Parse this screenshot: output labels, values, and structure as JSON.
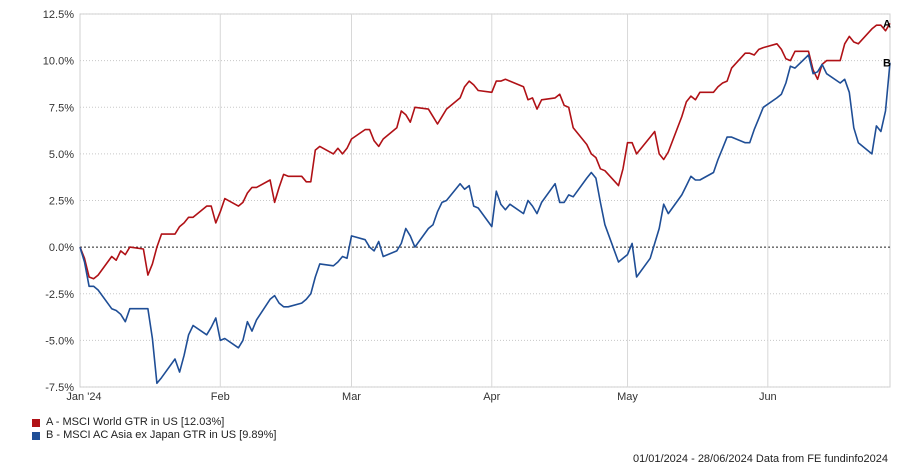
{
  "chart_data": {
    "type": "line",
    "x_ticks": [
      "Jan '24",
      "Feb",
      "Mar",
      "Apr",
      "May",
      "Jun"
    ],
    "y_ticks": [
      "12.5%",
      "10.0%",
      "7.5%",
      "5.0%",
      "2.5%",
      "0.0%",
      "-2.5%",
      "-5.0%",
      "-7.5%"
    ],
    "ylim": [
      -7.5,
      12.5
    ],
    "x_range": [
      "2024-01-01",
      "2024-06-28"
    ],
    "grid": true,
    "zero_line": "dotted",
    "series": [
      {
        "name": "A - MSCI World GTR in US [12.03%]",
        "end_label": "A",
        "color": "#b01116",
        "points": [
          [
            "2024-01-01",
            0.0
          ],
          [
            "2024-01-02",
            -0.6
          ],
          [
            "2024-01-03",
            -1.6
          ],
          [
            "2024-01-04",
            -1.7
          ],
          [
            "2024-01-05",
            -1.5
          ],
          [
            "2024-01-08",
            -0.5
          ],
          [
            "2024-01-09",
            -0.7
          ],
          [
            "2024-01-10",
            -0.2
          ],
          [
            "2024-01-11",
            -0.4
          ],
          [
            "2024-01-12",
            0.0
          ],
          [
            "2024-01-15",
            -0.1
          ],
          [
            "2024-01-16",
            -1.5
          ],
          [
            "2024-01-17",
            -0.9
          ],
          [
            "2024-01-18",
            0.0
          ],
          [
            "2024-01-19",
            0.7
          ],
          [
            "2024-01-22",
            0.7
          ],
          [
            "2024-01-23",
            1.1
          ],
          [
            "2024-01-24",
            1.3
          ],
          [
            "2024-01-25",
            1.6
          ],
          [
            "2024-01-26",
            1.6
          ],
          [
            "2024-01-29",
            2.2
          ],
          [
            "2024-01-30",
            2.2
          ],
          [
            "2024-01-31",
            1.3
          ],
          [
            "2024-02-01",
            1.9
          ],
          [
            "2024-02-02",
            2.6
          ],
          [
            "2024-02-05",
            2.2
          ],
          [
            "2024-02-06",
            2.4
          ],
          [
            "2024-02-07",
            2.9
          ],
          [
            "2024-02-08",
            3.2
          ],
          [
            "2024-02-09",
            3.2
          ],
          [
            "2024-02-12",
            3.6
          ],
          [
            "2024-02-13",
            2.4
          ],
          [
            "2024-02-14",
            3.2
          ],
          [
            "2024-02-15",
            3.9
          ],
          [
            "2024-02-16",
            3.8
          ],
          [
            "2024-02-19",
            3.8
          ],
          [
            "2024-02-20",
            3.5
          ],
          [
            "2024-02-21",
            3.5
          ],
          [
            "2024-02-22",
            5.2
          ],
          [
            "2024-02-23",
            5.4
          ],
          [
            "2024-02-26",
            5.0
          ],
          [
            "2024-02-27",
            5.3
          ],
          [
            "2024-02-28",
            5.0
          ],
          [
            "2024-02-29",
            5.3
          ],
          [
            "2024-03-01",
            5.8
          ],
          [
            "2024-03-04",
            6.3
          ],
          [
            "2024-03-05",
            6.3
          ],
          [
            "2024-03-06",
            5.7
          ],
          [
            "2024-03-07",
            5.4
          ],
          [
            "2024-03-08",
            5.8
          ],
          [
            "2024-03-11",
            6.4
          ],
          [
            "2024-03-12",
            7.3
          ],
          [
            "2024-03-13",
            7.1
          ],
          [
            "2024-03-14",
            6.7
          ],
          [
            "2024-03-15",
            7.5
          ],
          [
            "2024-03-18",
            7.4
          ],
          [
            "2024-03-19",
            7.0
          ],
          [
            "2024-03-20",
            6.6
          ],
          [
            "2024-03-21",
            7.0
          ],
          [
            "2024-03-22",
            7.4
          ],
          [
            "2024-03-25",
            8.0
          ],
          [
            "2024-03-26",
            8.6
          ],
          [
            "2024-03-27",
            8.9
          ],
          [
            "2024-03-28",
            8.7
          ],
          [
            "2024-03-29",
            8.4
          ],
          [
            "2024-04-01",
            8.3
          ],
          [
            "2024-04-02",
            8.9
          ],
          [
            "2024-04-03",
            8.9
          ],
          [
            "2024-04-04",
            9.0
          ],
          [
            "2024-04-05",
            8.9
          ],
          [
            "2024-04-08",
            8.6
          ],
          [
            "2024-04-09",
            7.9
          ],
          [
            "2024-04-10",
            8.0
          ],
          [
            "2024-04-11",
            7.4
          ],
          [
            "2024-04-12",
            7.9
          ],
          [
            "2024-04-15",
            8.0
          ],
          [
            "2024-04-16",
            8.2
          ],
          [
            "2024-04-17",
            7.6
          ],
          [
            "2024-04-18",
            7.5
          ],
          [
            "2024-04-19",
            6.4
          ],
          [
            "2024-04-22",
            5.5
          ],
          [
            "2024-04-23",
            5.0
          ],
          [
            "2024-04-24",
            4.8
          ],
          [
            "2024-04-25",
            4.2
          ],
          [
            "2024-04-26",
            4.1
          ],
          [
            "2024-04-29",
            3.3
          ],
          [
            "2024-04-30",
            4.2
          ],
          [
            "2024-05-01",
            5.6
          ],
          [
            "2024-05-02",
            5.6
          ],
          [
            "2024-05-03",
            5.0
          ],
          [
            "2024-05-06",
            5.9
          ],
          [
            "2024-05-07",
            6.2
          ],
          [
            "2024-05-08",
            5.0
          ],
          [
            "2024-05-09",
            4.7
          ],
          [
            "2024-05-10",
            5.1
          ],
          [
            "2024-05-13",
            7.0
          ],
          [
            "2024-05-14",
            7.8
          ],
          [
            "2024-05-15",
            8.1
          ],
          [
            "2024-05-16",
            7.9
          ],
          [
            "2024-05-17",
            8.3
          ],
          [
            "2024-05-20",
            8.3
          ],
          [
            "2024-05-21",
            8.6
          ],
          [
            "2024-05-22",
            8.8
          ],
          [
            "2024-05-23",
            8.9
          ],
          [
            "2024-05-24",
            9.6
          ],
          [
            "2024-05-27",
            10.4
          ],
          [
            "2024-05-28",
            10.4
          ],
          [
            "2024-05-29",
            10.3
          ],
          [
            "2024-05-30",
            10.6
          ],
          [
            "2024-05-31",
            10.7
          ],
          [
            "2024-06-03",
            10.9
          ],
          [
            "2024-06-04",
            10.6
          ],
          [
            "2024-06-05",
            10.1
          ],
          [
            "2024-06-06",
            10.0
          ],
          [
            "2024-06-07",
            10.5
          ],
          [
            "2024-06-10",
            10.5
          ],
          [
            "2024-06-11",
            9.5
          ],
          [
            "2024-06-12",
            9.0
          ],
          [
            "2024-06-13",
            9.8
          ],
          [
            "2024-06-14",
            10.0
          ],
          [
            "2024-06-17",
            10.0
          ],
          [
            "2024-06-18",
            10.9
          ],
          [
            "2024-06-19",
            11.3
          ],
          [
            "2024-06-20",
            11.0
          ],
          [
            "2024-06-21",
            10.9
          ],
          [
            "2024-06-24",
            11.7
          ],
          [
            "2024-06-25",
            11.9
          ],
          [
            "2024-06-26",
            11.9
          ],
          [
            "2024-06-27",
            11.6
          ],
          [
            "2024-06-28",
            12.0
          ]
        ]
      },
      {
        "name": "B - MSCI AC Asia ex Japan GTR in US [9.89%]",
        "end_label": "B",
        "color": "#1f4e96",
        "points": [
          [
            "2024-01-01",
            0.0
          ],
          [
            "2024-01-02",
            -0.8
          ],
          [
            "2024-01-03",
            -2.1
          ],
          [
            "2024-01-04",
            -2.1
          ],
          [
            "2024-01-05",
            -2.3
          ],
          [
            "2024-01-08",
            -3.3
          ],
          [
            "2024-01-09",
            -3.4
          ],
          [
            "2024-01-10",
            -3.6
          ],
          [
            "2024-01-11",
            -4.0
          ],
          [
            "2024-01-12",
            -3.3
          ],
          [
            "2024-01-15",
            -3.3
          ],
          [
            "2024-01-16",
            -3.3
          ],
          [
            "2024-01-17",
            -4.9
          ],
          [
            "2024-01-18",
            -7.3
          ],
          [
            "2024-01-19",
            -7.0
          ],
          [
            "2024-01-22",
            -6.0
          ],
          [
            "2024-01-23",
            -6.7
          ],
          [
            "2024-01-24",
            -5.8
          ],
          [
            "2024-01-25",
            -4.7
          ],
          [
            "2024-01-26",
            -4.2
          ],
          [
            "2024-01-29",
            -4.7
          ],
          [
            "2024-01-30",
            -4.3
          ],
          [
            "2024-01-31",
            -3.8
          ],
          [
            "2024-02-01",
            -5.0
          ],
          [
            "2024-02-02",
            -4.9
          ],
          [
            "2024-02-05",
            -5.4
          ],
          [
            "2024-02-06",
            -5.0
          ],
          [
            "2024-02-07",
            -4.0
          ],
          [
            "2024-02-08",
            -4.5
          ],
          [
            "2024-02-09",
            -3.9
          ],
          [
            "2024-02-12",
            -2.8
          ],
          [
            "2024-02-13",
            -2.6
          ],
          [
            "2024-02-14",
            -3.0
          ],
          [
            "2024-02-15",
            -3.2
          ],
          [
            "2024-02-16",
            -3.2
          ],
          [
            "2024-02-19",
            -3.0
          ],
          [
            "2024-02-20",
            -2.8
          ],
          [
            "2024-02-21",
            -2.5
          ],
          [
            "2024-02-22",
            -1.6
          ],
          [
            "2024-02-23",
            -0.9
          ],
          [
            "2024-02-26",
            -1.0
          ],
          [
            "2024-02-27",
            -0.8
          ],
          [
            "2024-02-28",
            -0.5
          ],
          [
            "2024-02-29",
            -0.6
          ],
          [
            "2024-03-01",
            0.6
          ],
          [
            "2024-03-04",
            0.4
          ],
          [
            "2024-03-05",
            0.0
          ],
          [
            "2024-03-06",
            -0.2
          ],
          [
            "2024-03-07",
            0.3
          ],
          [
            "2024-03-08",
            -0.5
          ],
          [
            "2024-03-11",
            -0.2
          ],
          [
            "2024-03-12",
            0.2
          ],
          [
            "2024-03-13",
            1.0
          ],
          [
            "2024-03-14",
            0.6
          ],
          [
            "2024-03-15",
            0.0
          ],
          [
            "2024-03-18",
            1.0
          ],
          [
            "2024-03-19",
            1.2
          ],
          [
            "2024-03-20",
            1.9
          ],
          [
            "2024-03-21",
            2.4
          ],
          [
            "2024-03-22",
            2.5
          ],
          [
            "2024-03-25",
            3.4
          ],
          [
            "2024-03-26",
            3.1
          ],
          [
            "2024-03-27",
            3.3
          ],
          [
            "2024-03-28",
            2.2
          ],
          [
            "2024-03-29",
            2.1
          ],
          [
            "2024-04-01",
            1.1
          ],
          [
            "2024-04-02",
            3.0
          ],
          [
            "2024-04-03",
            2.3
          ],
          [
            "2024-04-04",
            2.0
          ],
          [
            "2024-04-05",
            2.3
          ],
          [
            "2024-04-08",
            1.8
          ],
          [
            "2024-04-09",
            2.5
          ],
          [
            "2024-04-10",
            2.2
          ],
          [
            "2024-04-11",
            1.8
          ],
          [
            "2024-04-12",
            2.4
          ],
          [
            "2024-04-15",
            3.4
          ],
          [
            "2024-04-16",
            2.4
          ],
          [
            "2024-04-17",
            2.4
          ],
          [
            "2024-04-18",
            2.8
          ],
          [
            "2024-04-19",
            2.7
          ],
          [
            "2024-04-22",
            3.7
          ],
          [
            "2024-04-23",
            4.0
          ],
          [
            "2024-04-24",
            3.7
          ],
          [
            "2024-04-25",
            2.4
          ],
          [
            "2024-04-26",
            1.2
          ],
          [
            "2024-04-29",
            -0.8
          ],
          [
            "2024-04-30",
            -0.6
          ],
          [
            "2024-05-01",
            -0.4
          ],
          [
            "2024-05-02",
            0.2
          ],
          [
            "2024-05-03",
            -1.6
          ],
          [
            "2024-05-06",
            -0.6
          ],
          [
            "2024-05-07",
            0.2
          ],
          [
            "2024-05-08",
            1.0
          ],
          [
            "2024-05-09",
            2.3
          ],
          [
            "2024-05-10",
            1.8
          ],
          [
            "2024-05-13",
            2.8
          ],
          [
            "2024-05-14",
            3.3
          ],
          [
            "2024-05-15",
            3.8
          ],
          [
            "2024-05-16",
            3.6
          ],
          [
            "2024-05-17",
            3.6
          ],
          [
            "2024-05-20",
            4.0
          ],
          [
            "2024-05-21",
            4.7
          ],
          [
            "2024-05-22",
            5.3
          ],
          [
            "2024-05-23",
            5.9
          ],
          [
            "2024-05-24",
            5.9
          ],
          [
            "2024-05-27",
            5.6
          ],
          [
            "2024-05-28",
            5.6
          ],
          [
            "2024-05-29",
            6.3
          ],
          [
            "2024-05-30",
            6.9
          ],
          [
            "2024-05-31",
            7.5
          ],
          [
            "2024-06-03",
            8.0
          ],
          [
            "2024-06-04",
            8.2
          ],
          [
            "2024-06-05",
            8.8
          ],
          [
            "2024-06-06",
            9.7
          ],
          [
            "2024-06-07",
            9.6
          ],
          [
            "2024-06-10",
            10.3
          ],
          [
            "2024-06-11",
            9.3
          ],
          [
            "2024-06-12",
            9.4
          ],
          [
            "2024-06-13",
            9.8
          ],
          [
            "2024-06-14",
            9.3
          ],
          [
            "2024-06-17",
            8.8
          ],
          [
            "2024-06-18",
            9.0
          ],
          [
            "2024-06-19",
            8.3
          ],
          [
            "2024-06-20",
            6.4
          ],
          [
            "2024-06-21",
            5.6
          ],
          [
            "2024-06-24",
            5.0
          ],
          [
            "2024-06-25",
            6.5
          ],
          [
            "2024-06-26",
            6.2
          ],
          [
            "2024-06-27",
            7.3
          ],
          [
            "2024-06-28",
            9.89
          ]
        ]
      }
    ]
  },
  "footer_text": "01/01/2024 - 28/06/2024 Data from FE fundinfo2024"
}
